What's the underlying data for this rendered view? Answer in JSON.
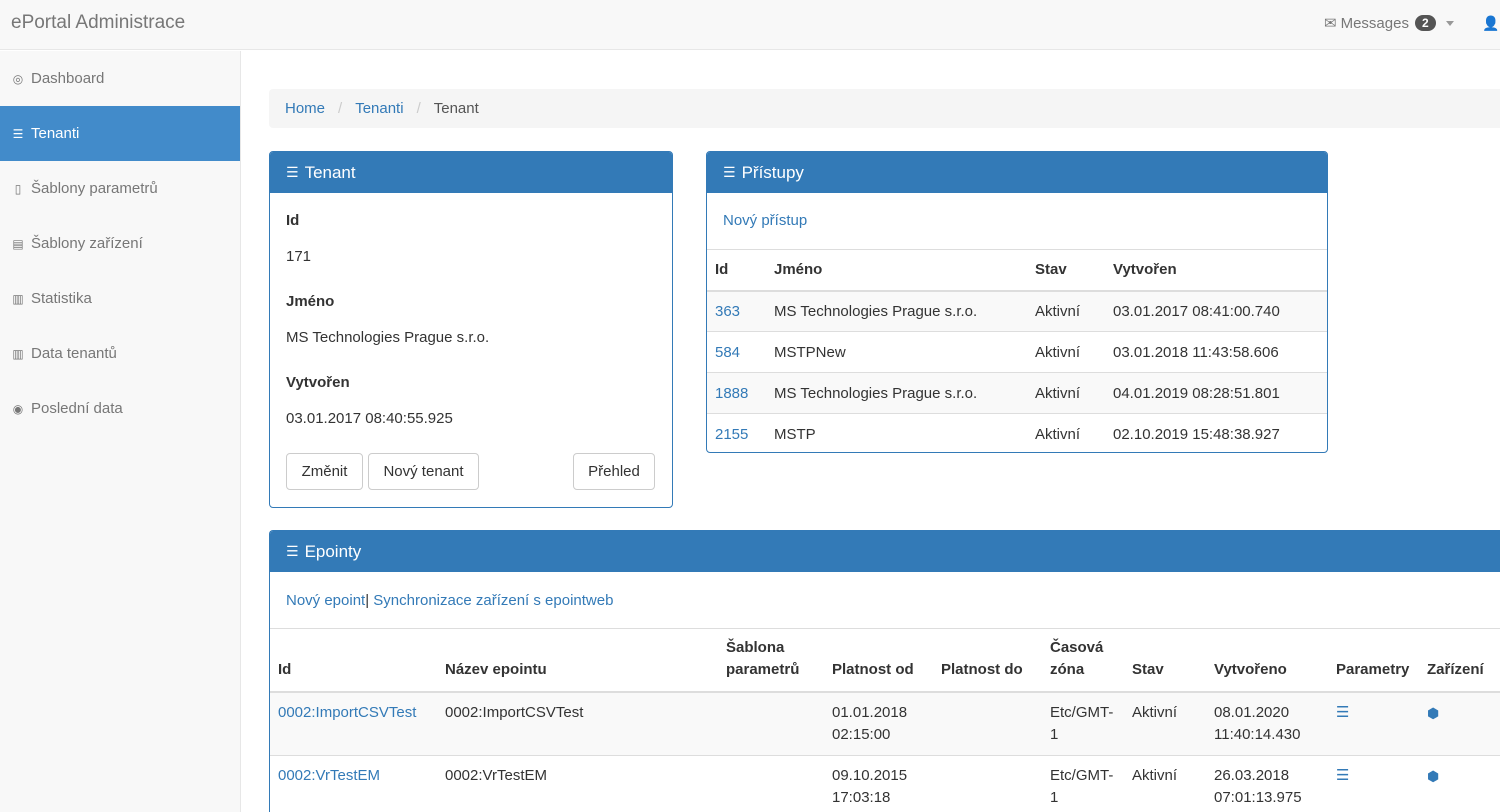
{
  "navbar": {
    "brand": "ePortal Administrace",
    "messages_label": "Messages",
    "messages_count": "2"
  },
  "sidebar": {
    "items": [
      {
        "label": "Dashboard",
        "icon": "dashboard-icon"
      },
      {
        "label": "Tenanti",
        "icon": "server-icon"
      },
      {
        "label": "Šablony parametrů",
        "icon": "tablet-icon"
      },
      {
        "label": "Šablony zařízení",
        "icon": "card-icon"
      },
      {
        "label": "Statistika",
        "icon": "bar-chart-icon"
      },
      {
        "label": "Data tenantů",
        "icon": "bar-chart-icon"
      },
      {
        "label": "Poslední data",
        "icon": "eye-icon"
      }
    ]
  },
  "breadcrumb": {
    "home": "Home",
    "tenanti": "Tenanti",
    "current": "Tenant"
  },
  "tenant_panel": {
    "title": "Tenant",
    "id_label": "Id",
    "id_value": "171",
    "name_label": "Jméno",
    "name_value": "MS Technologies Prague s.r.o.",
    "created_label": "Vytvořen",
    "created_value": "03.01.2017 08:40:55.925",
    "btn_change": "Změnit",
    "btn_new": "Nový tenant",
    "btn_overview": "Přehled"
  },
  "pristupy_panel": {
    "title": "Přístupy",
    "new_link": "Nový přístup",
    "columns": [
      "Id",
      "Jméno",
      "Stav",
      "Vytvořen"
    ],
    "rows": [
      [
        "363",
        "MS Technologies Prague s.r.o.",
        "Aktivní",
        "03.01.2017 08:41:00.740"
      ],
      [
        "584",
        "MSTPNew",
        "Aktivní",
        "03.01.2018 11:43:58.606"
      ],
      [
        "1888",
        "MS Technologies Prague s.r.o.",
        "Aktivní",
        "04.01.2019 08:28:51.801"
      ],
      [
        "2155",
        "MSTP",
        "Aktivní",
        "02.10.2019 15:48:38.927"
      ]
    ]
  },
  "epointy_panel": {
    "title": "Epointy",
    "new_link": "Nový epoint",
    "link_separator": "|",
    "sync_link": "Synchronizace zařízení s epointweb",
    "columns": [
      "Id",
      "Název epointu",
      "Šablona parametrů",
      "Platnost od",
      "Platnost do",
      "Časová zóna",
      "Stav",
      "Vytvořeno",
      "Parametry",
      "Zařízení"
    ],
    "rows": [
      [
        "0002:ImportCSVTest",
        "0002:ImportCSVTest",
        "",
        "01.01.2018 02:15:00",
        "",
        "Etc/GMT-1",
        "Aktivní",
        "08.01.2020 11:40:14.430"
      ],
      [
        "0002:VrTestEM",
        "0002:VrTestEM",
        "",
        "09.10.2015 17:03:18",
        "",
        "Etc/GMT-1",
        "Aktivní",
        "26.03.2018 07:01:13.975"
      ]
    ]
  }
}
